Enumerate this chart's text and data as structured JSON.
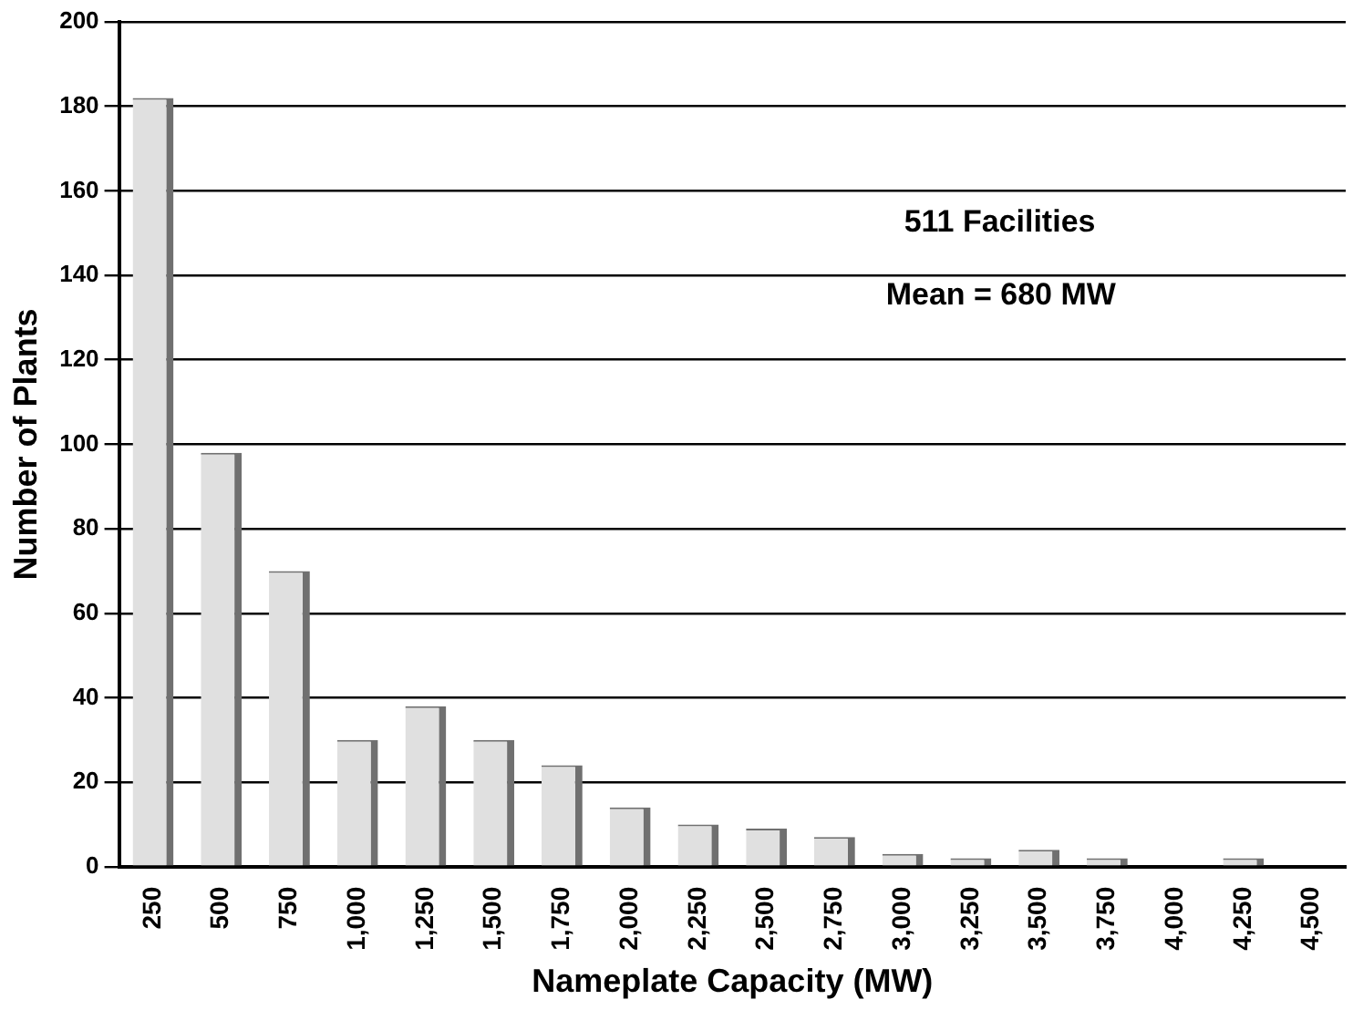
{
  "chart_data": {
    "type": "bar",
    "xlabel": "Nameplate Capacity (MW)",
    "ylabel": "Number of Plants",
    "categories": [
      "250",
      "500",
      "750",
      "1,000",
      "1,250",
      "1,500",
      "1,750",
      "2,000",
      "2,250",
      "2,500",
      "2,750",
      "3,000",
      "3,250",
      "3,500",
      "3,750",
      "4,000",
      "4,250",
      "4,500"
    ],
    "values": [
      182,
      98,
      70,
      30,
      38,
      30,
      24,
      14,
      10,
      9,
      7,
      3,
      2,
      4,
      2,
      0,
      2,
      0
    ],
    "color": "#e0e0e0",
    "ylim": [
      0,
      200
    ],
    "yticks": [
      0,
      20,
      40,
      60,
      80,
      100,
      120,
      140,
      160,
      180,
      200
    ],
    "grid": "y",
    "legend": false,
    "annotations": [
      "511 Facilities",
      "Mean = 680 MW"
    ]
  }
}
